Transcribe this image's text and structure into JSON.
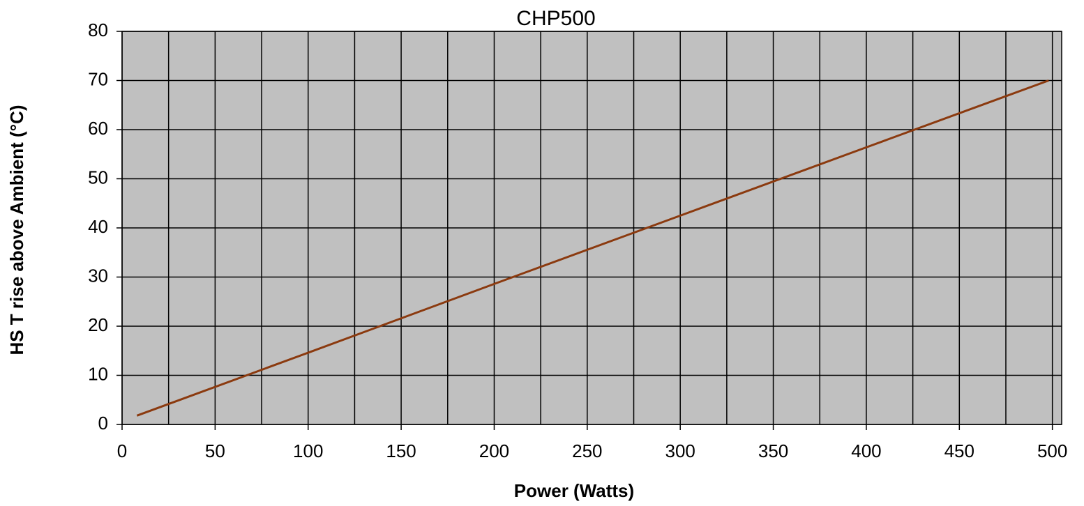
{
  "chart_data": {
    "type": "line",
    "title": "CHP500",
    "x_label": "Power (Watts)",
    "y_label": "HS T rise above Ambient (°C)",
    "x": [
      8,
      100,
      200,
      300,
      400,
      498
    ],
    "series": [
      {
        "name": "CHP500",
        "color": "#8b3a0f",
        "values": [
          1.8,
          14.6,
          28.6,
          42.5,
          56.4,
          70
        ]
      }
    ],
    "xlim": [
      0,
      505
    ],
    "xticks": [
      0,
      50,
      100,
      150,
      200,
      250,
      300,
      350,
      400,
      450,
      500
    ],
    "x_minor_ticks": [
      25,
      75,
      125,
      175,
      225,
      275,
      325,
      375,
      425,
      475
    ],
    "ylim": [
      0,
      80
    ],
    "yticks": [
      0,
      10,
      20,
      30,
      40,
      50,
      60,
      70,
      80
    ],
    "grid": true,
    "background": "#c0c0c0"
  }
}
